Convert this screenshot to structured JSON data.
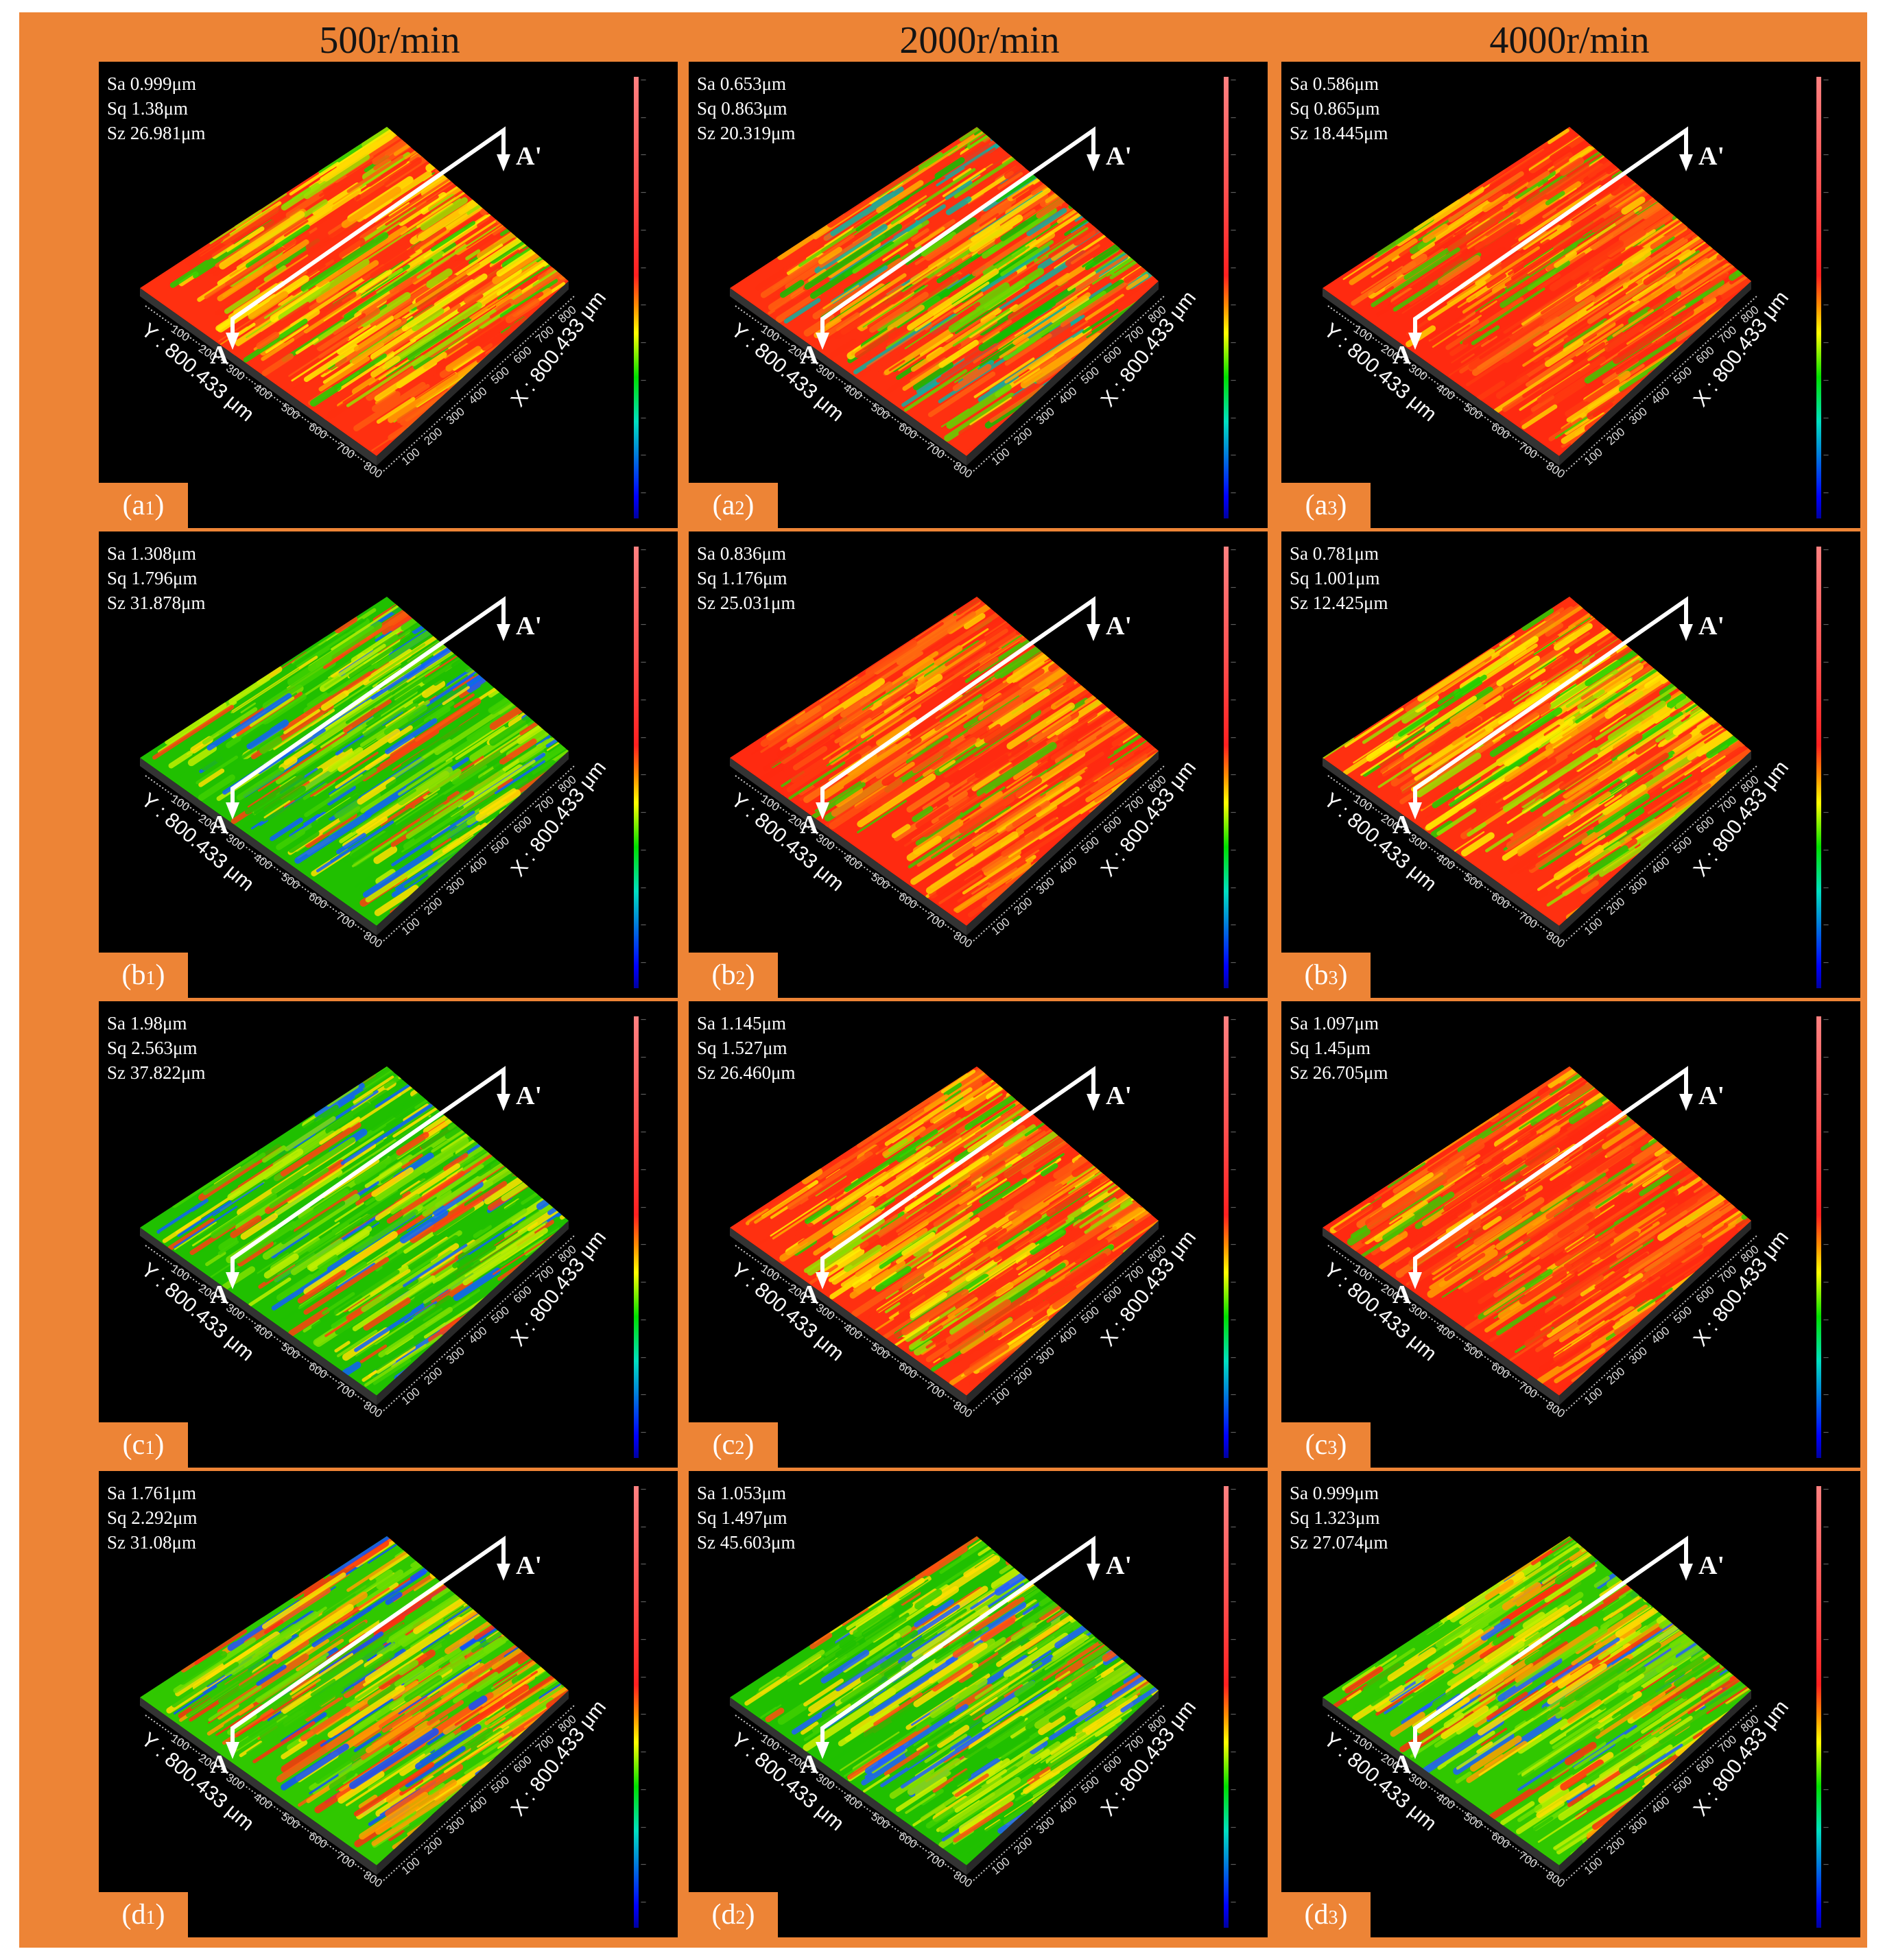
{
  "columns": [
    {
      "label": "500r/min"
    },
    {
      "label": "2000r/min"
    },
    {
      "label": "4000r/min"
    }
  ],
  "axes": {
    "x_label": "X : 800.433 μm",
    "y_label": "Y : 800.433 μm",
    "ticks": [
      "100",
      "200",
      "300",
      "400",
      "500",
      "600",
      "700",
      "800"
    ]
  },
  "section_marks": {
    "start": "A",
    "end": "A'"
  },
  "panels": [
    {
      "label": "a",
      "sub": "1",
      "Sa": "Sa 0.999μm",
      "Sq": "Sq 1.38μm",
      "Sz": "Sz 26.981μm",
      "dominant": "red-yellow"
    },
    {
      "label": "a",
      "sub": "2",
      "Sa": "Sa 0.653μm",
      "Sq": "Sq 0.863μm",
      "Sz": "Sz 20.319μm",
      "dominant": "red-green"
    },
    {
      "label": "a",
      "sub": "3",
      "Sa": "Sa 0.586μm",
      "Sq": "Sq 0.865μm",
      "Sz": "Sz 18.445μm",
      "dominant": "red"
    },
    {
      "label": "b",
      "sub": "1",
      "Sa": "Sa 1.308μm",
      "Sq": "Sq 1.796μm",
      "Sz": "Sz 31.878μm",
      "dominant": "green-blue"
    },
    {
      "label": "b",
      "sub": "2",
      "Sa": "Sa 0.836μm",
      "Sq": "Sq 1.176μm",
      "Sz": "Sz 25.031μm",
      "dominant": "red"
    },
    {
      "label": "b",
      "sub": "3",
      "Sa": "Sa 0.781μm",
      "Sq": "Sq 1.001μm",
      "Sz": "Sz 12.425μm",
      "dominant": "red-yellow"
    },
    {
      "label": "c",
      "sub": "1",
      "Sa": "Sa 1.98μm",
      "Sq": "Sq 2.563μm",
      "Sz": "Sz 37.822μm",
      "dominant": "green-blue"
    },
    {
      "label": "c",
      "sub": "2",
      "Sa": "Sa 1.145μm",
      "Sq": "Sq 1.527μm",
      "Sz": "Sz 26.460μm",
      "dominant": "red-yellow"
    },
    {
      "label": "c",
      "sub": "3",
      "Sa": "Sa 1.097μm",
      "Sq": "Sq 1.45μm",
      "Sz": "Sz 26.705μm",
      "dominant": "red"
    },
    {
      "label": "d",
      "sub": "1",
      "Sa": "Sa 1.761μm",
      "Sq": "Sq 2.292μm",
      "Sz": "Sz 31.08μm",
      "dominant": "green-red"
    },
    {
      "label": "d",
      "sub": "2",
      "Sa": "Sa 1.053μm",
      "Sq": "Sq 1.497μm",
      "Sz": "Sz 45.603μm",
      "dominant": "green"
    },
    {
      "label": "d",
      "sub": "3",
      "Sa": "Sa 0.999μm",
      "Sq": "Sq 1.323μm",
      "Sz": "Sz 27.074μm",
      "dominant": "green-yellow"
    }
  ],
  "colorbar_colors": [
    "#ff8080",
    "#ff2020",
    "#ff9000",
    "#ffff00",
    "#00e000",
    "#00e0c0",
    "#0000ff"
  ]
}
